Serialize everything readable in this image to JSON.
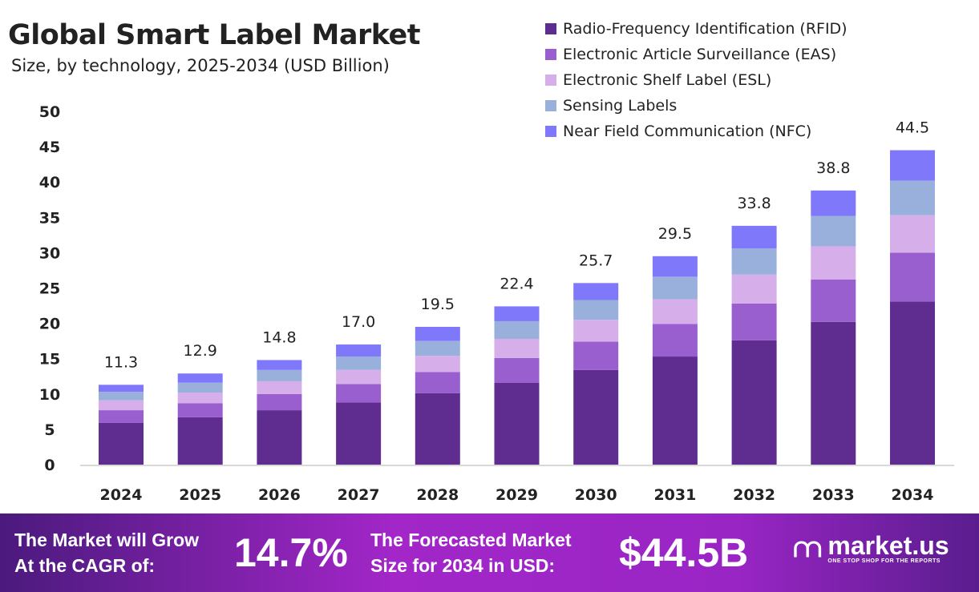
{
  "chart_data": {
    "type": "bar",
    "stacked": true,
    "title": "Global Smart Label Market",
    "subtitle": "Size, by technology, 2025-2034 (USD Billion)",
    "xlabel": "",
    "ylabel": "",
    "ylim": [
      0,
      50
    ],
    "yticks": [
      0,
      5,
      10,
      15,
      20,
      25,
      30,
      35,
      40,
      45,
      50
    ],
    "grid": false,
    "legend_position": "top-right",
    "categories": [
      "2024",
      "2025",
      "2026",
      "2027",
      "2028",
      "2029",
      "2030",
      "2031",
      "2032",
      "2033",
      "2034"
    ],
    "totals": [
      11.3,
      12.9,
      14.8,
      17.0,
      19.5,
      22.4,
      25.7,
      29.5,
      33.8,
      38.8,
      44.5
    ],
    "total_labels": [
      "11.3",
      "12.9",
      "14.8",
      "17.0",
      "19.5",
      "22.4",
      "25.7",
      "29.5",
      "33.8",
      "38.8",
      "44.5"
    ],
    "series": [
      {
        "name": "Radio-Frequency Identification (RFID)",
        "color": "#5e2d8f",
        "values": [
          5.9,
          6.7,
          7.7,
          8.8,
          10.1,
          11.6,
          13.4,
          15.3,
          17.6,
          20.2,
          23.1
        ]
      },
      {
        "name": "Electronic Article Surveillance (EAS)",
        "color": "#9a5fcf",
        "values": [
          1.8,
          2.0,
          2.3,
          2.6,
          3.0,
          3.5,
          4.0,
          4.6,
          5.2,
          6.0,
          6.9
        ]
      },
      {
        "name": "Electronic Shelf Label (ESL)",
        "color": "#d6aeea",
        "values": [
          1.4,
          1.5,
          1.8,
          2.0,
          2.3,
          2.7,
          3.1,
          3.5,
          4.1,
          4.7,
          5.3
        ]
      },
      {
        "name": "Sensing Labels",
        "color": "#9ab0dc",
        "values": [
          1.2,
          1.4,
          1.6,
          1.9,
          2.1,
          2.5,
          2.8,
          3.2,
          3.7,
          4.3,
          4.9
        ]
      },
      {
        "name": "Near Field Communication (NFC)",
        "color": "#8078fa",
        "values": [
          1.0,
          1.3,
          1.4,
          1.7,
          2.0,
          2.1,
          2.4,
          2.9,
          3.2,
          3.6,
          4.3
        ]
      }
    ]
  },
  "footer": {
    "cagr_text_1": "The Market will Grow",
    "cagr_text_2": "At the CAGR of:",
    "cagr_value": "14.7%",
    "forecast_text_1": "The Forecasted Market",
    "forecast_text_2": "Size for 2034 in USD:",
    "forecast_value": "$44.5B",
    "logo_name": "market.us",
    "logo_tagline": "ONE STOP SHOP FOR THE REPORTS"
  }
}
